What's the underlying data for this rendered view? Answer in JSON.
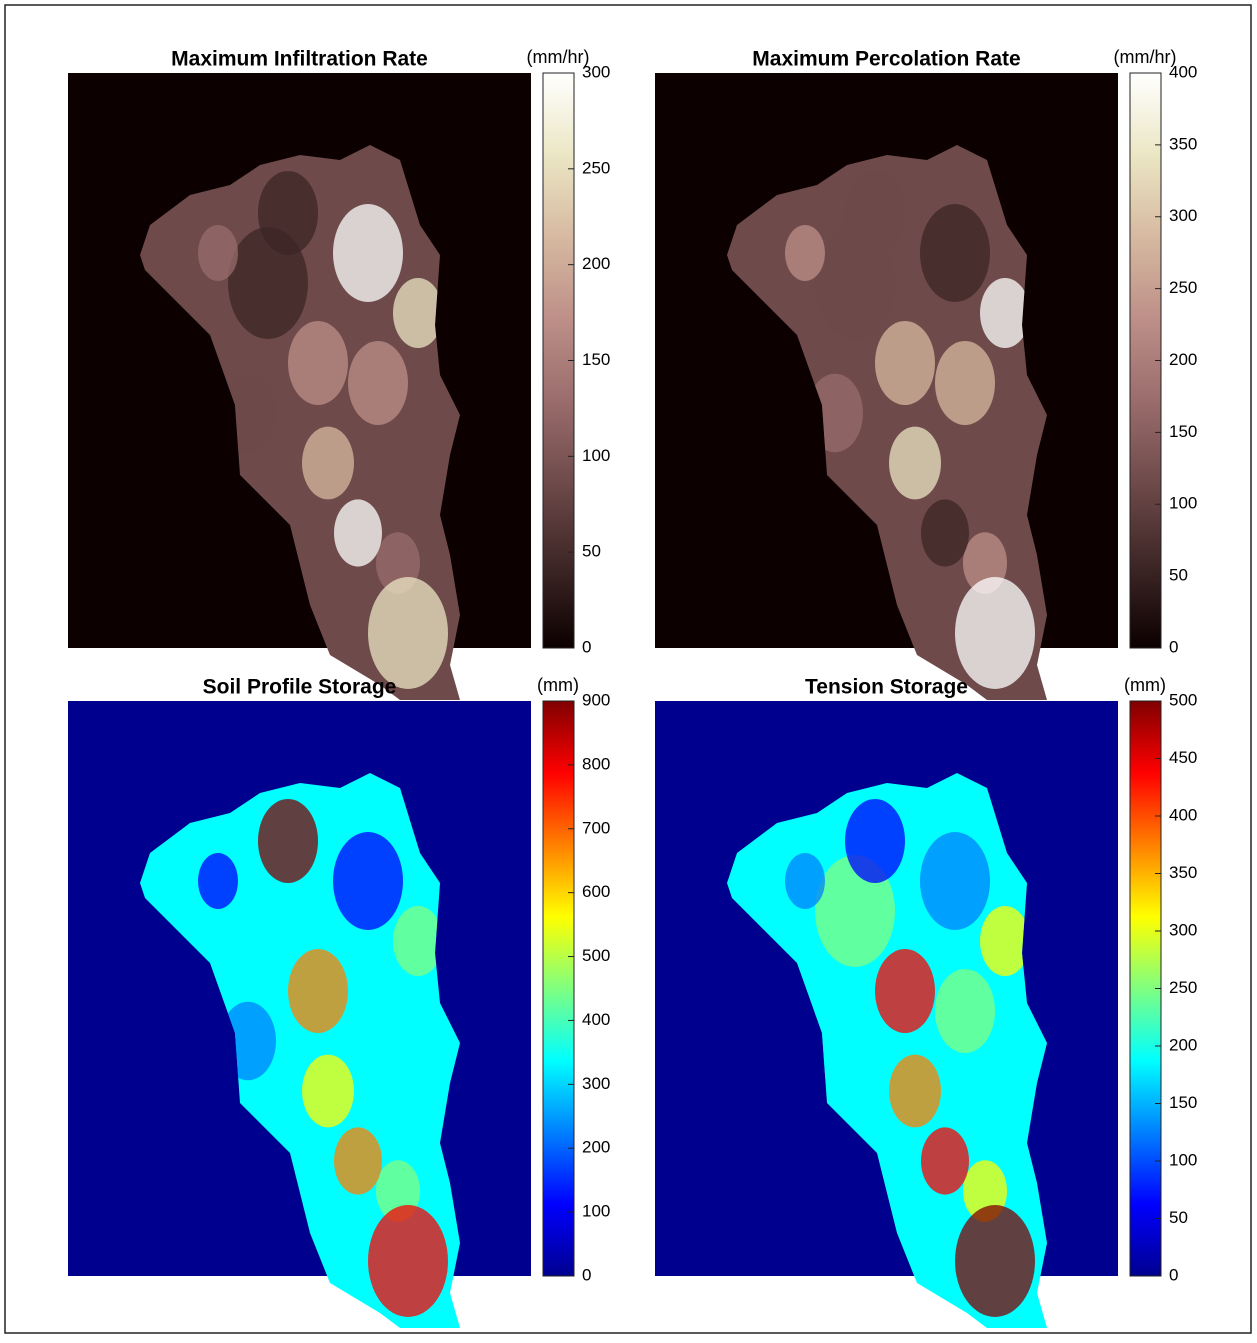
{
  "chart_data": [
    {
      "type": "map",
      "title": "Maximum Infiltration Rate",
      "colorbar_label": "(mm/hr)",
      "clim": [
        0,
        300
      ],
      "cticks": [
        0,
        50,
        100,
        150,
        200,
        250,
        300
      ],
      "colormap": [
        "#0c0000",
        "#3e2626",
        "#6e4a4a",
        "#9a6c6c",
        "#bd8f88",
        "#d6b9a0",
        "#ebe6c4",
        "#ffffff"
      ]
    },
    {
      "type": "map",
      "title": "Maximum Percolation Rate",
      "colorbar_label": "(mm/hr)",
      "clim": [
        0,
        400
      ],
      "cticks": [
        0,
        50,
        100,
        150,
        200,
        250,
        300,
        350,
        400
      ],
      "colormap": [
        "#0c0000",
        "#3e2626",
        "#6e4a4a",
        "#9a6c6c",
        "#bd8f88",
        "#d6b9a0",
        "#ebe6c4",
        "#ffffff"
      ]
    },
    {
      "type": "map",
      "title": "Soil Profile Storage",
      "colorbar_label": "(mm)",
      "clim": [
        0,
        900
      ],
      "cticks": [
        0,
        100,
        200,
        300,
        400,
        500,
        600,
        700,
        800,
        900
      ],
      "colormap": [
        "#00008f",
        "#0000ff",
        "#0080ff",
        "#00ffff",
        "#80ff80",
        "#ffff00",
        "#ff8000",
        "#ff0000",
        "#800000"
      ]
    },
    {
      "type": "map",
      "title": "Tension Storage",
      "colorbar_label": "(mm)",
      "clim": [
        0,
        500
      ],
      "cticks": [
        0,
        50,
        100,
        150,
        200,
        250,
        300,
        350,
        400,
        450,
        500
      ],
      "colormap": [
        "#00008f",
        "#0000ff",
        "#0080ff",
        "#00ffff",
        "#80ff80",
        "#ffff00",
        "#ff8000",
        "#ff0000",
        "#800000"
      ]
    }
  ]
}
